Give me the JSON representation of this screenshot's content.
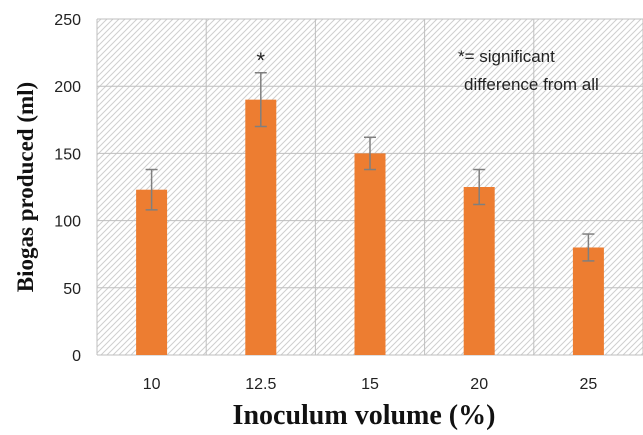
{
  "chart_data": {
    "type": "bar",
    "categories": [
      "10",
      "12.5",
      "15",
      "20",
      "25"
    ],
    "values": [
      123,
      190,
      150,
      125,
      80
    ],
    "error": [
      15,
      20,
      12,
      13,
      10
    ],
    "xlabel": "Inoculum volume (%)",
    "ylabel": "Biogas produced (ml)",
    "ylim": [
      0,
      250
    ],
    "yticks": [
      "0",
      "50",
      "100",
      "150",
      "200",
      "250"
    ],
    "annotations": {
      "star": "*",
      "star_category": "12.5",
      "note_line1": "*= significant",
      "note_line2": "difference from all"
    },
    "grid": true,
    "legend": "none",
    "colors": {
      "bar": "#ED7D31",
      "error": "#7f7f7f",
      "grid": "#bfbfbf",
      "hatch": "#cfcfcf"
    }
  }
}
